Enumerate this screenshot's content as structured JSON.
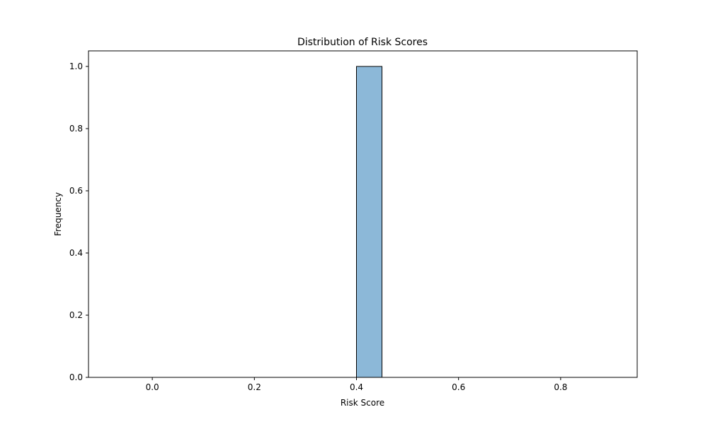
{
  "chart_data": {
    "type": "bar",
    "title": "Distribution of Risk Scores",
    "xlabel": "Risk Score",
    "ylabel": "Frequency",
    "xlim": [
      -0.125,
      0.95
    ],
    "ylim": [
      0,
      1.05
    ],
    "xticks": [
      0.0,
      0.2,
      0.4,
      0.6,
      0.8
    ],
    "xtick_labels": [
      "0.0",
      "0.2",
      "0.4",
      "0.6",
      "0.8"
    ],
    "yticks": [
      0.0,
      0.2,
      0.4,
      0.6,
      0.8,
      1.0
    ],
    "ytick_labels": [
      "0.0",
      "0.2",
      "0.4",
      "0.6",
      "0.8",
      "1.0"
    ],
    "bins": [
      {
        "x0": 0.4,
        "x1": 0.45,
        "value": 1
      }
    ],
    "baseline": [
      -0.1,
      0.9
    ],
    "grid": false,
    "bar_color": "#8cb8d8",
    "edge_color": "#000000",
    "baseline_color": "#6a8fb0"
  }
}
